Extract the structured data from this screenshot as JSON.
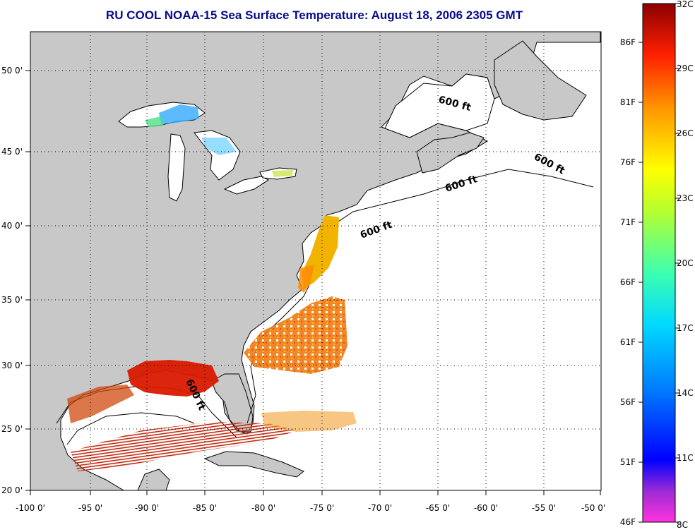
{
  "title": "RU COOL  NOAA-15  Sea Surface Temperature:  August 18, 2006 2305 GMT",
  "lon_labels": [
    "-100 0'",
    "-95 0'",
    "-90 0'",
    "-85 0'",
    "-80 0'",
    "-75 0'",
    "-70 0'",
    "-65 0'",
    "-60 0'",
    "-55 0'",
    "-50 0'"
  ],
  "lat_labels": [
    "20 0'",
    "25 0'",
    "30 0'",
    "35 0'",
    "40 0'",
    "45 0'",
    "50 0'"
  ],
  "contour_labels": [
    "600 ft",
    "600 ft",
    "600 ft",
    "600 ft",
    "600 ft"
  ],
  "colorbar": {
    "fahrenheit_labels": [
      "86F",
      "81F",
      "76F",
      "71F",
      "66F",
      "61F",
      "56F",
      "51F",
      "46F"
    ],
    "celsius_labels": [
      "32C",
      "29C",
      "26C",
      "23C",
      "20C",
      "17C",
      "14C",
      "11C",
      "8C"
    ],
    "gradient_colors": [
      "#ff33dd",
      "#9c2bd6",
      "#0000ff",
      "#0077ff",
      "#00d9ff",
      "#3dffb0",
      "#b6ff2e",
      "#ffff00",
      "#ff9400",
      "#ff2000",
      "#8b0000"
    ]
  },
  "colors": {
    "land": "#c8c8c8",
    "ocean": "#ffffff",
    "title": "#0a0a8c",
    "gulf_sst": "#d91a00",
    "shelf_sst": "#f2a800",
    "offshore_sst": "#f26a00",
    "lakes_sst": "#33cccc"
  }
}
